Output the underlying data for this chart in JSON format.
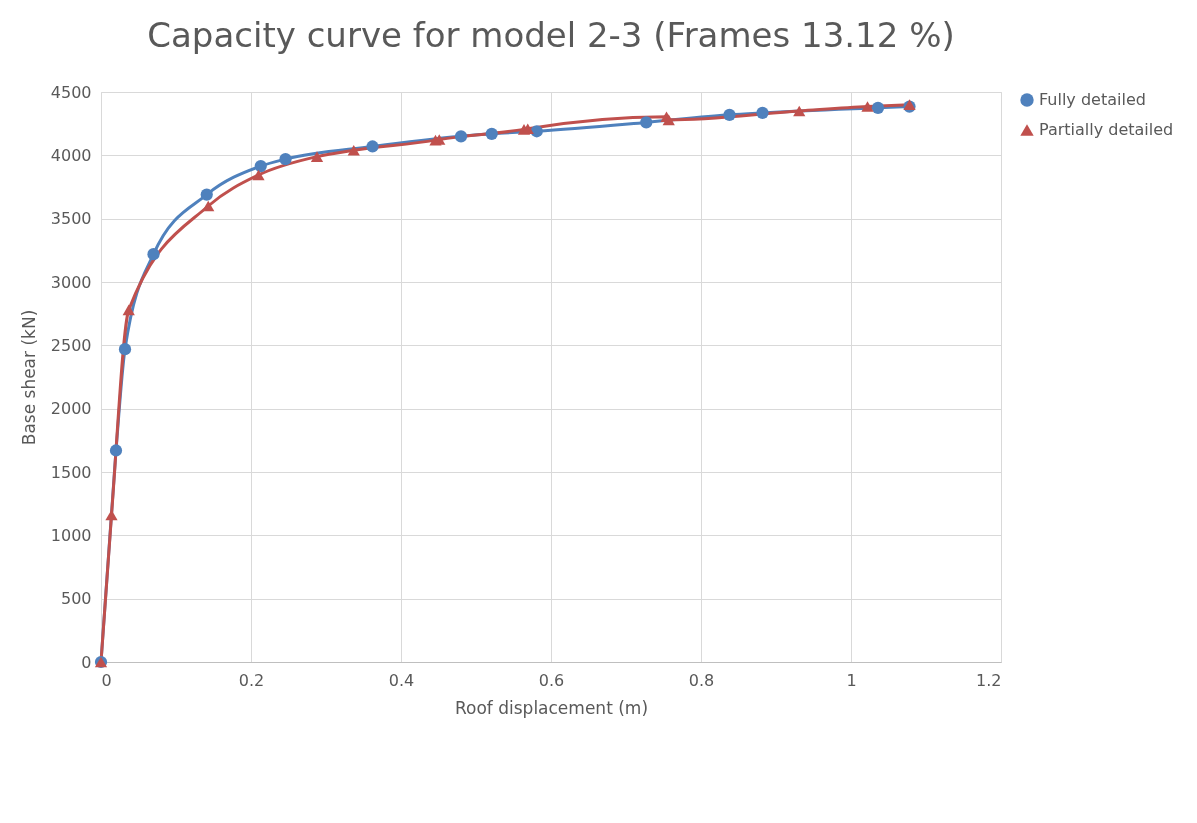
{
  "chart_data": {
    "type": "line",
    "title": "Capacity curve for model 2-3 (Frames 13.12 %)",
    "xlabel": "Roof displacement (m)",
    "ylabel": "Base shear (kN)",
    "xlim": [
      0,
      1.2
    ],
    "xticks": [
      0,
      0.2,
      0.4,
      0.6,
      0.8,
      1,
      1.2
    ],
    "ylim": [
      0,
      4500
    ],
    "yticks": [
      0,
      500,
      1000,
      1500,
      2000,
      2500,
      3000,
      3500,
      4000,
      4500
    ],
    "grid": true,
    "legend": "right",
    "series": [
      {
        "name": "Fully detailed",
        "color": "#4f81bd",
        "marker": "circle",
        "x": [
          0,
          0.02,
          0.032,
          0.07,
          0.141,
          0.213,
          0.246,
          0.362,
          0.48,
          0.521,
          0.581,
          0.727,
          0.838,
          0.882,
          1.036,
          1.078
        ],
        "values": [
          0,
          1670,
          2470,
          3220,
          3690,
          3915,
          3970,
          4070,
          4150,
          4170,
          4190,
          4260,
          4320,
          4335,
          4375,
          4385
        ]
      },
      {
        "name": "Partially detailed",
        "color": "#c0504d",
        "marker": "triangle",
        "x": [
          0,
          0.014,
          0.037,
          0.143,
          0.21,
          0.288,
          0.337,
          0.446,
          0.451,
          0.564,
          0.569,
          0.754,
          0.757,
          0.931,
          1.022,
          1.078
        ],
        "values": [
          0,
          1160,
          2780,
          3600,
          3845,
          3990,
          4040,
          4120,
          4125,
          4205,
          4210,
          4305,
          4280,
          4350,
          4385,
          4400
        ]
      }
    ]
  }
}
